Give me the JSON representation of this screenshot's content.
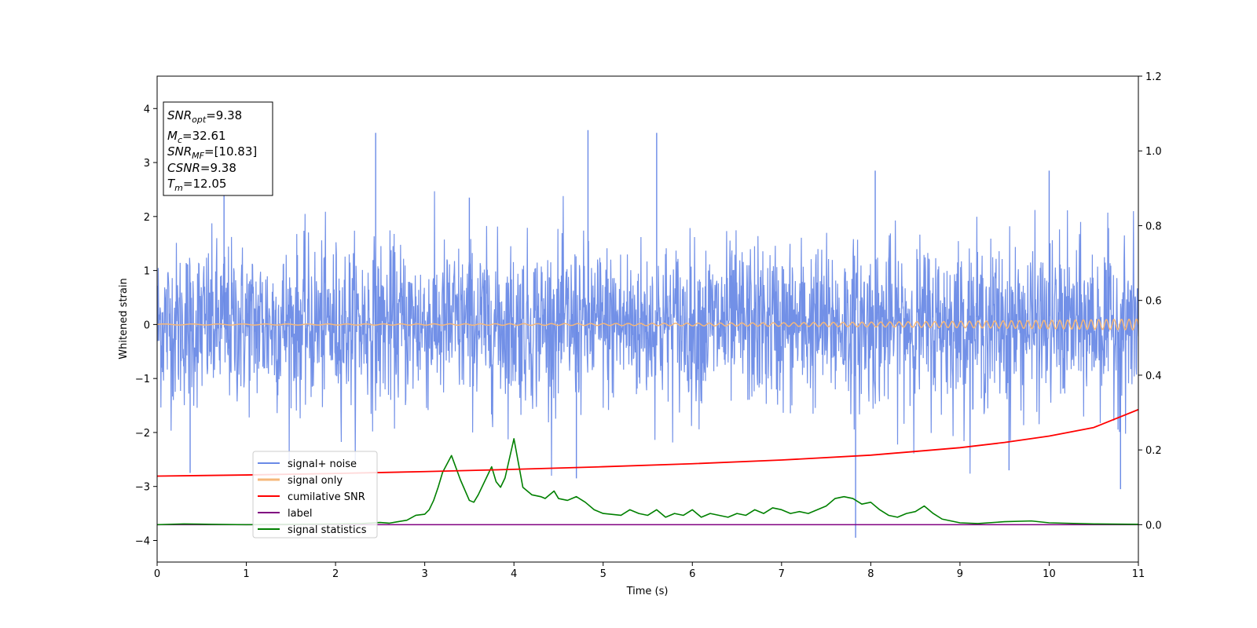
{
  "chart_data": {
    "type": "line",
    "xlabel": "Time (s)",
    "ylabel": "Whitened strain",
    "xlim": [
      0,
      11
    ],
    "ylim": [
      -4.4,
      4.6
    ],
    "y2lim": [
      -0.1,
      1.2
    ],
    "xticks": [
      "0",
      "1",
      "2",
      "3",
      "4",
      "5",
      "6",
      "7",
      "8",
      "9",
      "10",
      "11"
    ],
    "yticks": [
      "4",
      "3",
      "2",
      "1",
      "0",
      "−1",
      "−2",
      "−3",
      "−4"
    ],
    "y2ticks": [
      "1.2",
      "1.0",
      "0.8",
      "0.6",
      "0.4",
      "0.2",
      "0.0"
    ],
    "grid": false,
    "legend_placement": "lower-left",
    "info_box": {
      "snr_opt": {
        "base": "SNR",
        "sub": "opt",
        "value": "=9.38"
      },
      "mc": {
        "base": "M",
        "sub": "c",
        "value": "=32.61"
      },
      "snr_mf": {
        "base": "SNR",
        "sub": "MF",
        "value": "=[10.83]"
      },
      "csnr": {
        "base": "CSNR",
        "sub": "",
        "value": "=9.38"
      },
      "tm": {
        "base": "T",
        "sub": "m",
        "value": "=12.05"
      }
    },
    "series": [
      {
        "name": "signal+ noise",
        "axis": "left",
        "color": "#6a8ae6",
        "note_noise_sigma": 0.75,
        "spikes": [
          {
            "x": 2.45,
            "y": 3.55
          },
          {
            "x": 4.83,
            "y": 3.6
          },
          {
            "x": 5.6,
            "y": 3.55
          },
          {
            "x": 10.0,
            "y": 2.85
          },
          {
            "x": 7.83,
            "y": -3.95
          },
          {
            "x": 10.8,
            "y": -3.05
          },
          {
            "x": 0.37,
            "y": -2.75
          },
          {
            "x": 9.55,
            "y": -2.7
          },
          {
            "x": 4.7,
            "y": -2.85
          },
          {
            "x": 0.75,
            "y": 2.6
          },
          {
            "x": 3.5,
            "y": 2.35
          },
          {
            "x": 8.05,
            "y": 2.85
          }
        ]
      },
      {
        "name": "signal only",
        "axis": "left",
        "color": "#f5b77a",
        "chirp": {
          "t_merge": 12.05,
          "amp_start": 0.01,
          "amp_end": 0.1,
          "f_start": 3.0,
          "f_end": 12.0
        }
      },
      {
        "name": "cumilative SNR",
        "axis": "right",
        "color": "#ff0000",
        "x": [
          0,
          1,
          2,
          3,
          4,
          5,
          6,
          7,
          8,
          9,
          9.5,
          10,
          10.5,
          11
        ],
        "y": [
          0.13,
          0.133,
          0.137,
          0.142,
          0.148,
          0.155,
          0.163,
          0.173,
          0.186,
          0.206,
          0.22,
          0.237,
          0.26,
          0.308
        ]
      },
      {
        "name": "label",
        "axis": "right",
        "color": "#800080",
        "x": [
          0,
          11
        ],
        "y": [
          0.0,
          0.0
        ]
      },
      {
        "name": "signal statistics",
        "axis": "right",
        "color": "#008000",
        "x": [
          0,
          0.3,
          0.6,
          1.0,
          1.5,
          2.0,
          2.3,
          2.5,
          2.6,
          2.7,
          2.8,
          2.9,
          3.0,
          3.05,
          3.1,
          3.15,
          3.2,
          3.3,
          3.4,
          3.5,
          3.55,
          3.6,
          3.7,
          3.75,
          3.8,
          3.85,
          3.9,
          4.0,
          4.05,
          4.1,
          4.2,
          4.3,
          4.35,
          4.45,
          4.5,
          4.6,
          4.7,
          4.8,
          4.9,
          5.0,
          5.2,
          5.3,
          5.4,
          5.5,
          5.6,
          5.7,
          5.8,
          5.9,
          6.0,
          6.1,
          6.2,
          6.3,
          6.4,
          6.5,
          6.6,
          6.7,
          6.8,
          6.9,
          7.0,
          7.1,
          7.2,
          7.3,
          7.4,
          7.5,
          7.6,
          7.7,
          7.8,
          7.9,
          8.0,
          8.1,
          8.2,
          8.3,
          8.4,
          8.5,
          8.6,
          8.7,
          8.8,
          9.0,
          9.2,
          9.5,
          9.8,
          10.0,
          10.5,
          11.0
        ],
        "y": [
          0.0,
          0.002,
          0.001,
          0.0,
          0.001,
          0.002,
          0.003,
          0.006,
          0.004,
          0.008,
          0.012,
          0.025,
          0.028,
          0.04,
          0.065,
          0.1,
          0.14,
          0.185,
          0.12,
          0.065,
          0.06,
          0.08,
          0.13,
          0.155,
          0.115,
          0.1,
          0.125,
          0.23,
          0.165,
          0.1,
          0.08,
          0.075,
          0.07,
          0.09,
          0.07,
          0.065,
          0.075,
          0.06,
          0.04,
          0.03,
          0.025,
          0.04,
          0.03,
          0.025,
          0.04,
          0.02,
          0.03,
          0.025,
          0.04,
          0.02,
          0.03,
          0.025,
          0.02,
          0.03,
          0.025,
          0.04,
          0.03,
          0.045,
          0.04,
          0.03,
          0.035,
          0.03,
          0.04,
          0.05,
          0.07,
          0.075,
          0.07,
          0.055,
          0.06,
          0.04,
          0.025,
          0.02,
          0.03,
          0.035,
          0.05,
          0.03,
          0.015,
          0.005,
          0.003,
          0.008,
          0.01,
          0.005,
          0.002,
          0.001
        ]
      }
    ]
  }
}
